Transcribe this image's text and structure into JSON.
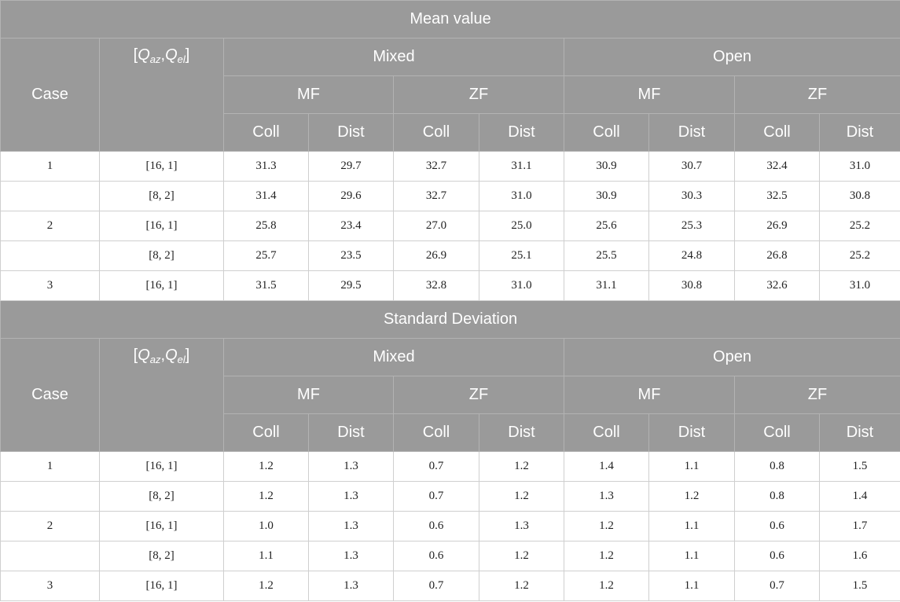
{
  "sections": [
    {
      "title": "Mean value",
      "header": {
        "case": "Case",
        "q": [
          "[",
          "Q",
          "az",
          ",",
          "Q",
          "el",
          "]"
        ],
        "groups": [
          "Mixed",
          "Open"
        ],
        "subgroups": [
          "MF",
          "ZF",
          "MF",
          "ZF"
        ],
        "columns": [
          "Coll",
          "Dist",
          "Coll",
          "Dist",
          "Coll",
          "Dist",
          "Coll",
          "Dist"
        ]
      },
      "rows": [
        {
          "case": "1",
          "q": "[16, 1]",
          "values": [
            "31.3",
            "29.7",
            "32.7",
            "31.1",
            "30.9",
            "30.7",
            "32.4",
            "31.0"
          ]
        },
        {
          "case": null,
          "q": "[8, 2]",
          "values": [
            "31.4",
            "29.6",
            "32.7",
            "31.0",
            "30.9",
            "30.3",
            "32.5",
            "30.8"
          ]
        },
        {
          "case": "2",
          "q": "[16, 1]",
          "values": [
            "25.8",
            "23.4",
            "27.0",
            "25.0",
            "25.6",
            "25.3",
            "26.9",
            "25.2"
          ]
        },
        {
          "case": null,
          "q": "[8, 2]",
          "values": [
            "25.7",
            "23.5",
            "26.9",
            "25.1",
            "25.5",
            "24.8",
            "26.8",
            "25.2"
          ]
        },
        {
          "case": "3",
          "q": "[16, 1]",
          "values": [
            "31.5",
            "29.5",
            "32.8",
            "31.0",
            "31.1",
            "30.8",
            "32.6",
            "31.0"
          ]
        }
      ]
    },
    {
      "title": "Standard Deviation",
      "header": {
        "case": "Case",
        "q": [
          "[",
          "Q",
          "az",
          ",",
          "Q",
          "el",
          "]"
        ],
        "groups": [
          "Mixed",
          "Open"
        ],
        "subgroups": [
          "MF",
          "ZF",
          "MF",
          "ZF"
        ],
        "columns": [
          "Coll",
          "Dist",
          "Coll",
          "Dist",
          "Coll",
          "Dist",
          "Coll",
          "Dist"
        ]
      },
      "rows": [
        {
          "case": "1",
          "q": "[16, 1]",
          "values": [
            "1.2",
            "1.3",
            "0.7",
            "1.2",
            "1.4",
            "1.1",
            "0.8",
            "1.5"
          ]
        },
        {
          "case": null,
          "q": "[8, 2]",
          "values": [
            "1.2",
            "1.3",
            "0.7",
            "1.2",
            "1.3",
            "1.2",
            "0.8",
            "1.4"
          ]
        },
        {
          "case": "2",
          "q": "[16, 1]",
          "values": [
            "1.0",
            "1.3",
            "0.6",
            "1.3",
            "1.2",
            "1.1",
            "0.6",
            "1.7"
          ]
        },
        {
          "case": null,
          "q": "[8, 2]",
          "values": [
            "1.1",
            "1.3",
            "0.6",
            "1.2",
            "1.2",
            "1.1",
            "0.6",
            "1.6"
          ]
        },
        {
          "case": "3",
          "q": "[16, 1]",
          "values": [
            "1.2",
            "1.3",
            "0.7",
            "1.2",
            "1.2",
            "1.1",
            "0.7",
            "1.5"
          ]
        }
      ]
    }
  ]
}
